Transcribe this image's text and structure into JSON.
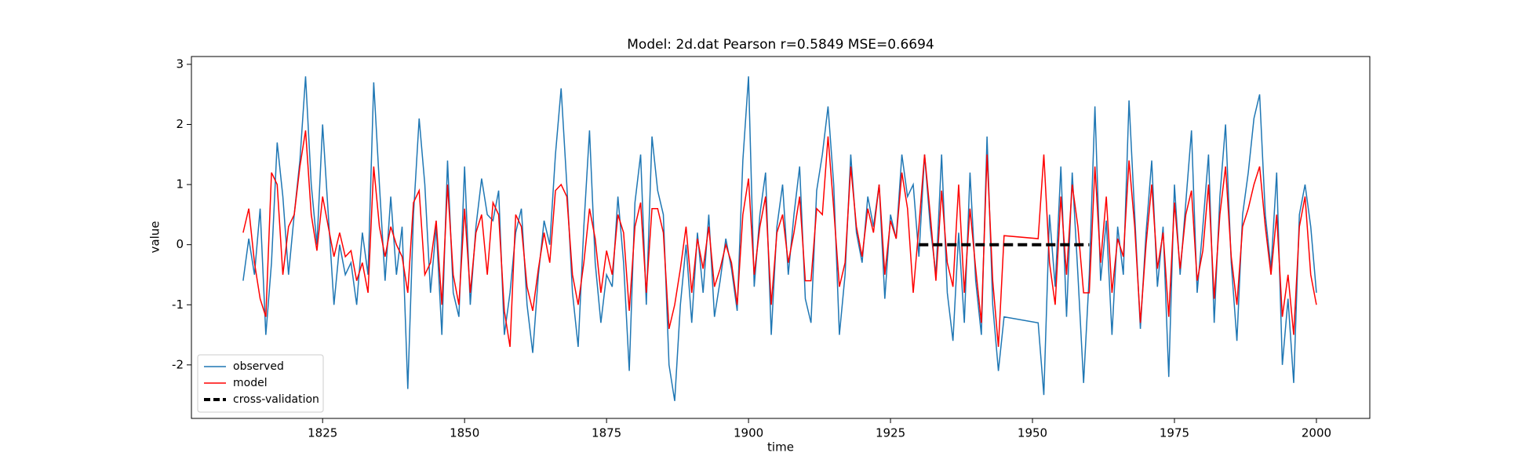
{
  "chart_data": {
    "type": "line",
    "title": "Model: 2d.dat  Pearson r=0.5849  MSE=0.6694",
    "x_label": "time",
    "y_label": "value",
    "x": [
      1811,
      1812,
      1813,
      1814,
      1815,
      1816,
      1817,
      1818,
      1819,
      1820,
      1821,
      1822,
      1823,
      1824,
      1825,
      1826,
      1827,
      1828,
      1829,
      1830,
      1831,
      1832,
      1833,
      1834,
      1835,
      1836,
      1837,
      1838,
      1839,
      1840,
      1841,
      1842,
      1843,
      1844,
      1845,
      1846,
      1847,
      1848,
      1849,
      1850,
      1851,
      1852,
      1853,
      1854,
      1855,
      1856,
      1857,
      1858,
      1859,
      1860,
      1861,
      1862,
      1863,
      1864,
      1865,
      1866,
      1867,
      1868,
      1869,
      1870,
      1871,
      1872,
      1873,
      1874,
      1875,
      1876,
      1877,
      1878,
      1879,
      1880,
      1881,
      1882,
      1883,
      1884,
      1885,
      1886,
      1887,
      1888,
      1889,
      1890,
      1891,
      1892,
      1893,
      1894,
      1895,
      1896,
      1897,
      1898,
      1899,
      1900,
      1901,
      1902,
      1903,
      1904,
      1905,
      1906,
      1907,
      1908,
      1909,
      1910,
      1911,
      1912,
      1913,
      1914,
      1915,
      1916,
      1917,
      1918,
      1919,
      1920,
      1921,
      1922,
      1923,
      1924,
      1925,
      1926,
      1927,
      1928,
      1929,
      1930,
      1931,
      1932,
      1933,
      1934,
      1935,
      1936,
      1937,
      1938,
      1939,
      1940,
      1941,
      1942,
      1943,
      1944,
      1945,
      1951,
      1952,
      1953,
      1954,
      1955,
      1956,
      1957,
      1958,
      1959,
      1960,
      1961,
      1962,
      1963,
      1964,
      1965,
      1966,
      1967,
      1968,
      1969,
      1970,
      1971,
      1972,
      1973,
      1974,
      1975,
      1976,
      1977,
      1978,
      1979,
      1980,
      1981,
      1982,
      1983,
      1984,
      1985,
      1986,
      1987,
      1988,
      1989,
      1990,
      1991,
      1992,
      1993,
      1994,
      1995,
      1996,
      1997,
      1998,
      1999,
      2000
    ],
    "series": [
      {
        "name": "observed",
        "color": "#1f77b4",
        "values": [
          -0.6,
          0.1,
          -0.5,
          0.6,
          -1.5,
          -0.3,
          1.7,
          0.8,
          -0.5,
          0.5,
          1.4,
          2.8,
          1.0,
          0.0,
          2.0,
          0.5,
          -1.0,
          0.0,
          -0.5,
          -0.3,
          -1.0,
          0.2,
          -0.5,
          2.7,
          1.0,
          -0.6,
          0.8,
          -0.5,
          0.3,
          -2.4,
          0.5,
          2.1,
          1.0,
          -0.8,
          0.3,
          -1.5,
          1.4,
          -0.8,
          -1.2,
          1.3,
          -1.0,
          0.3,
          1.1,
          0.5,
          0.4,
          0.9,
          -1.5,
          -0.8,
          0.2,
          0.6,
          -1.0,
          -1.8,
          -0.5,
          0.4,
          0.0,
          1.5,
          2.6,
          1.0,
          -0.8,
          -1.7,
          0.3,
          1.9,
          -0.3,
          -1.3,
          -0.5,
          -0.7,
          0.8,
          -0.3,
          -2.1,
          0.7,
          1.5,
          -1.0,
          1.8,
          0.9,
          0.5,
          -2.0,
          -2.6,
          -1.0,
          0.0,
          -1.3,
          0.2,
          -0.8,
          0.5,
          -1.2,
          -0.6,
          0.1,
          -0.4,
          -1.1,
          1.4,
          2.8,
          -0.7,
          0.5,
          1.2,
          -1.5,
          0.3,
          1.0,
          -0.5,
          0.5,
          1.3,
          -0.9,
          -1.3,
          0.9,
          1.5,
          2.3,
          1.0,
          -1.5,
          -0.5,
          1.5,
          0.2,
          -0.3,
          0.8,
          0.3,
          1.0,
          -0.9,
          0.5,
          0.1,
          1.5,
          0.8,
          1.0,
          -0.2,
          1.5,
          0.3,
          -0.5,
          1.5,
          -0.8,
          -1.6,
          0.2,
          -1.3,
          1.2,
          -0.6,
          -1.5,
          1.8,
          -1.0,
          -2.1,
          -1.2,
          -1.3,
          -2.5,
          0.5,
          -0.7,
          1.3,
          -1.2,
          1.2,
          -0.5,
          -2.3,
          -0.5,
          2.3,
          -0.6,
          0.4,
          -1.5,
          0.3,
          -0.5,
          2.4,
          0.5,
          -1.4,
          0.2,
          1.4,
          -0.7,
          0.3,
          -2.2,
          1.0,
          -0.5,
          0.7,
          1.9,
          -0.8,
          0.3,
          1.5,
          -1.3,
          0.8,
          2.0,
          -0.3,
          -1.6,
          0.5,
          1.2,
          2.1,
          2.5,
          0.5,
          -0.4,
          1.2,
          -2.0,
          -0.9,
          -2.3,
          0.5,
          1.0,
          0.3,
          -0.8
        ]
      },
      {
        "name": "model",
        "color": "#ff0000",
        "values": [
          0.2,
          0.6,
          -0.3,
          -0.9,
          -1.2,
          1.2,
          1.0,
          -0.5,
          0.3,
          0.5,
          1.3,
          1.9,
          0.5,
          -0.1,
          0.8,
          0.3,
          -0.2,
          0.2,
          -0.2,
          -0.1,
          -0.6,
          -0.3,
          -0.8,
          1.3,
          0.3,
          -0.2,
          0.3,
          0.0,
          -0.2,
          -0.8,
          0.7,
          0.9,
          -0.5,
          -0.3,
          0.4,
          -1.0,
          1.0,
          -0.5,
          -1.0,
          0.6,
          -0.8,
          0.2,
          0.5,
          -0.5,
          0.7,
          0.5,
          -1.1,
          -1.7,
          0.5,
          0.3,
          -0.7,
          -1.1,
          -0.4,
          0.2,
          -0.3,
          0.9,
          1.0,
          0.8,
          -0.5,
          -1.0,
          -0.3,
          0.6,
          0.1,
          -0.8,
          -0.1,
          -0.5,
          0.5,
          0.2,
          -1.1,
          0.3,
          0.7,
          -0.8,
          0.6,
          0.6,
          0.2,
          -1.4,
          -1.0,
          -0.4,
          0.3,
          -0.8,
          0.1,
          -0.4,
          0.3,
          -0.7,
          -0.4,
          0.0,
          -0.3,
          -1.0,
          0.5,
          1.1,
          -0.5,
          0.3,
          0.8,
          -1.0,
          0.2,
          0.5,
          -0.3,
          0.2,
          0.8,
          -0.6,
          -0.6,
          0.6,
          0.5,
          1.8,
          0.6,
          -0.7,
          -0.3,
          1.3,
          0.3,
          -0.2,
          0.6,
          0.2,
          1.0,
          -0.5,
          0.4,
          0.1,
          1.2,
          0.6,
          -0.8,
          0.3,
          1.5,
          0.5,
          -0.6,
          0.9,
          -0.3,
          -0.7,
          1.0,
          -0.8,
          0.6,
          -0.4,
          -1.3,
          1.5,
          -0.6,
          -1.7,
          0.15,
          0.1,
          1.5,
          -0.3,
          -1.0,
          0.8,
          -0.5,
          1.0,
          0.3,
          -0.8,
          -0.8,
          1.3,
          -0.3,
          0.8,
          -0.8,
          0.1,
          -0.2,
          1.4,
          0.3,
          -1.3,
          0.0,
          1.0,
          -0.4,
          0.2,
          -1.2,
          0.7,
          -0.4,
          0.5,
          0.9,
          -0.6,
          -0.1,
          1.0,
          -0.9,
          0.5,
          1.3,
          -0.2,
          -1.0,
          0.3,
          0.6,
          1.0,
          1.3,
          0.3,
          -0.5,
          0.5,
          -1.2,
          -0.5,
          -1.5,
          0.3,
          0.8,
          -0.5,
          -1.0
        ]
      },
      {
        "name": "cross-validation",
        "color": "#000000",
        "dashed": true,
        "x": [
          1930,
          1960
        ],
        "values": [
          0,
          0
        ]
      }
    ],
    "xlim": [
      1801.9,
      2009.4
    ],
    "ylim": [
      -2.89,
      3.13
    ],
    "xticks": [
      1825,
      1850,
      1875,
      1900,
      1925,
      1950,
      1975,
      2000
    ],
    "yticks": [
      -2,
      -1,
      0,
      1,
      2,
      3
    ],
    "legend": "lower left"
  }
}
